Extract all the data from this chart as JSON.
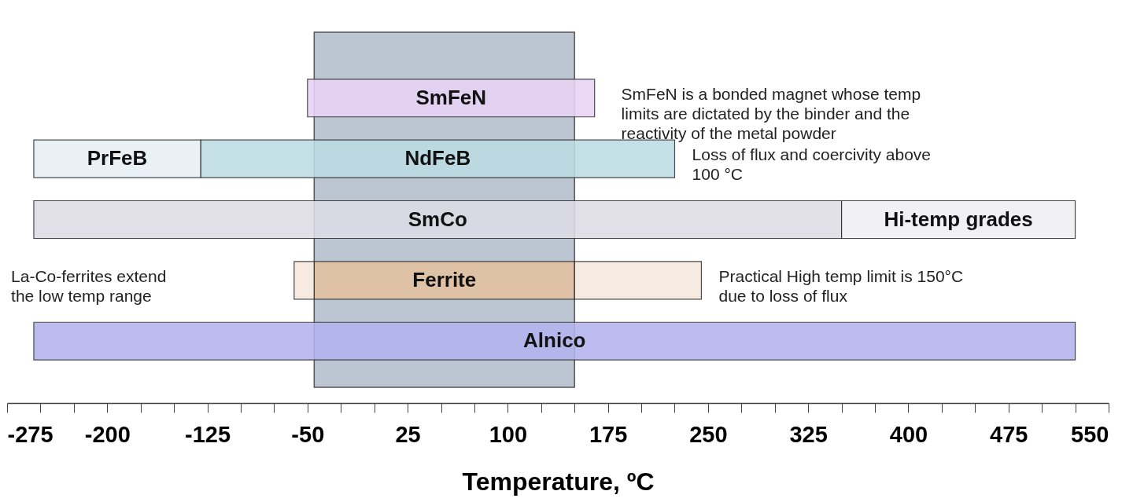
{
  "chart_data": {
    "type": "bar",
    "orientation": "horizontal",
    "xlabel": "Temperature, ºC",
    "categories": [
      "SmFeN",
      "NdFeB",
      "SmCo",
      "Ferrite",
      "Alnico"
    ],
    "series": [
      {
        "colors": [
          "#e9d3f6",
          "#bcdbe3",
          "#dddce6",
          "#e4c1a0",
          "#b4b3ee"
        ],
        "values": [
          215,
          355,
          605,
          195,
          780
        ],
        "base": [
          -50,
          -130,
          -255,
          -45,
          -255
        ]
      },
      {
        "name": "PrFeB",
        "color": "#e6f0f7",
        "values": [
          null,
          125,
          null,
          null,
          null
        ],
        "base": [
          null,
          -255,
          null,
          null,
          null
        ]
      },
      {
        "name": "Hi-temp grades",
        "color": "#efeff4",
        "values": [
          null,
          null,
          175,
          null,
          null
        ],
        "base": [
          null,
          null,
          350,
          null,
          null
        ]
      },
      {
        "color": "#f6e8dc",
        "values": [
          null,
          null,
          null,
          15,
          null
        ],
        "base": [
          null,
          null,
          null,
          -60,
          null
        ]
      },
      {
        "color": "#f6e8dc",
        "values": [
          null,
          null,
          null,
          95,
          null
        ],
        "base": [
          null,
          null,
          null,
          150,
          null
        ]
      }
    ],
    "bands": [
      {
        "axis": "x",
        "from": -45,
        "to": 150,
        "color": "#bcc5d2"
      }
    ],
    "annotations": [
      "SmFeN is a bonded magnet whose temp\nlimits are dictated by the binder and the\nreactivity of the metal powder",
      "Loss of flux and coercivity above\n100 °C",
      "La-Co-ferrites extend\nthe low temp range",
      "Practical High temp limit is 150°C\ndue to loss of flux"
    ],
    "xlim": [
      -275,
      550
    ],
    "xticks": [
      -275,
      {
        "value": -250,
        "label": null
      },
      {
        "value": -225,
        "label": null
      },
      -200,
      {
        "value": -175,
        "label": null
      },
      {
        "value": -150,
        "label": null
      },
      -125,
      {
        "value": -100,
        "label": null
      },
      {
        "value": -75,
        "label": null
      },
      -50,
      {
        "value": -25,
        "label": null
      },
      {
        "value": 0,
        "label": null
      },
      25,
      {
        "value": 50,
        "label": null
      },
      {
        "value": 75,
        "label": null
      },
      100,
      {
        "value": 125,
        "label": null
      },
      {
        "value": 150,
        "label": null
      },
      175,
      {
        "value": 200,
        "label": null
      },
      {
        "value": 225,
        "label": null
      },
      250,
      {
        "value": 275,
        "label": null
      },
      {
        "value": 300,
        "label": null
      },
      325,
      {
        "value": 350,
        "label": null
      },
      {
        "value": 375,
        "label": null
      },
      400,
      {
        "value": 425,
        "label": null
      },
      {
        "value": 450,
        "label": null
      },
      475,
      {
        "value": 500,
        "label": null
      },
      {
        "value": 525,
        "label": null
      },
      550
    ],
    "tick_labels": "x",
    "grid": false
  }
}
